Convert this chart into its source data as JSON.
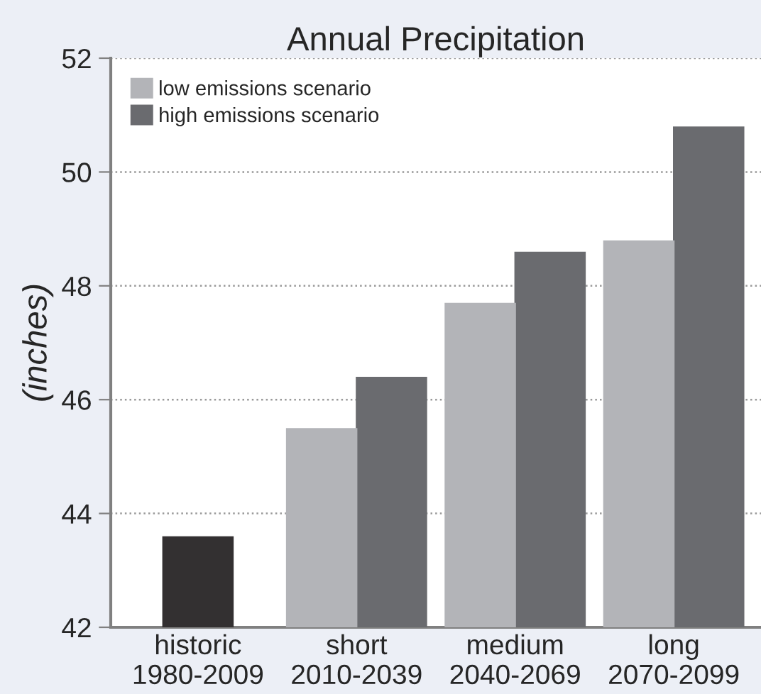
{
  "chart_data": {
    "type": "bar",
    "title": "Annual Precipitation",
    "ylabel": "(inches)",
    "categories": [
      "historic\n1980-2009",
      "short\n2010-2039",
      "medium\n2040-2069",
      "long\n2070-2099"
    ],
    "series": [
      {
        "color": "#333031",
        "values": [
          43.6,
          null,
          null,
          null
        ]
      },
      {
        "name": "low emissions scenario",
        "color": "#b3b4b8",
        "values": [
          null,
          45.5,
          47.7,
          48.8
        ]
      },
      {
        "name": "high emissions scenario",
        "color": "#6a6b6f",
        "values": [
          null,
          46.4,
          48.6,
          50.8
        ]
      }
    ],
    "ylim": [
      42,
      52
    ],
    "yticks": [
      42,
      44,
      46,
      48,
      50,
      52
    ],
    "grid": "y",
    "legend": "top left"
  }
}
